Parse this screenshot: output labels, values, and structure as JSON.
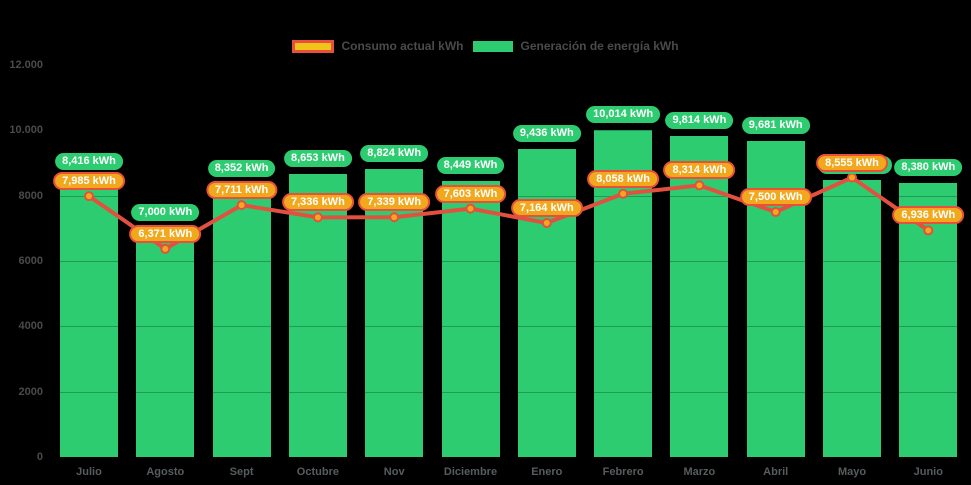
{
  "legend": {
    "consumption": {
      "label": "Consumo actual kWh"
    },
    "generation": {
      "label": "Generación de energía kWh"
    }
  },
  "colors": {
    "bar_green": "#2ECC71",
    "badge_amber": "#F2A81C",
    "legend_yellow": "#F0C419",
    "line_red": "#E2513F",
    "badge_border_red": "#E8503C",
    "axis_text": "#4A4A4A",
    "month_text": "#575C5F",
    "badge_text": "#FFFFFF",
    "background": "#000000"
  },
  "y_axis": {
    "tick_labels": [
      "12.000",
      "10.000",
      "8000",
      "6000",
      "4000",
      "2000",
      "0"
    ],
    "tick_values": [
      12000,
      10000,
      8000,
      6000,
      4000,
      2000,
      0
    ]
  },
  "chart_data": {
    "type": "bar",
    "subtype": "bar-and-line combo",
    "categories": [
      "Julio",
      "Agosto",
      "Sept",
      "Octubre",
      "Nov",
      "Diciembre",
      "Enero",
      "Febrero",
      "Marzo",
      "Abril",
      "Mayo",
      "Junio"
    ],
    "series": [
      {
        "name": "Generación de energía kWh",
        "type": "bar",
        "color": "#2ECC71",
        "values": [
          8416,
          7000,
          8352,
          8653,
          8824,
          8449,
          9436,
          10014,
          9814,
          9681,
          8490,
          8380
        ],
        "labels": [
          "8,416 kWh",
          "7,000 kWh",
          "8,352 kWh",
          "8,653 kWh",
          "8,824 kWh",
          "8,449 kWh",
          "9,436 kWh",
          "10,014 kWh",
          "9,814 kWh",
          "9,681 kWh",
          "",
          "8,380 kWh"
        ],
        "label_hidden_for": "Mayo",
        "mayo_value_estimated": true
      },
      {
        "name": "Consumo actual kWh",
        "type": "line",
        "color": "#E2513F",
        "marker_fill": "#F2A81C",
        "values": [
          7985,
          6371,
          7711,
          7336,
          7339,
          7603,
          7164,
          8058,
          8314,
          7500,
          8555,
          6936
        ],
        "labels": [
          "7,985 kWh",
          "6,371 kWh",
          "7,711 kWh",
          "7,336 kWh",
          "7,339 kWh",
          "7,603 kWh",
          "7,164 kWh",
          "8,058 kWh",
          "8,314 kWh",
          "7,500 kWh",
          "8,555 kWh",
          "6,936 kWh"
        ]
      }
    ],
    "ylim": [
      0,
      12000
    ],
    "grid": "faint horizontal lines every 2000",
    "legend_position": "top-center"
  }
}
